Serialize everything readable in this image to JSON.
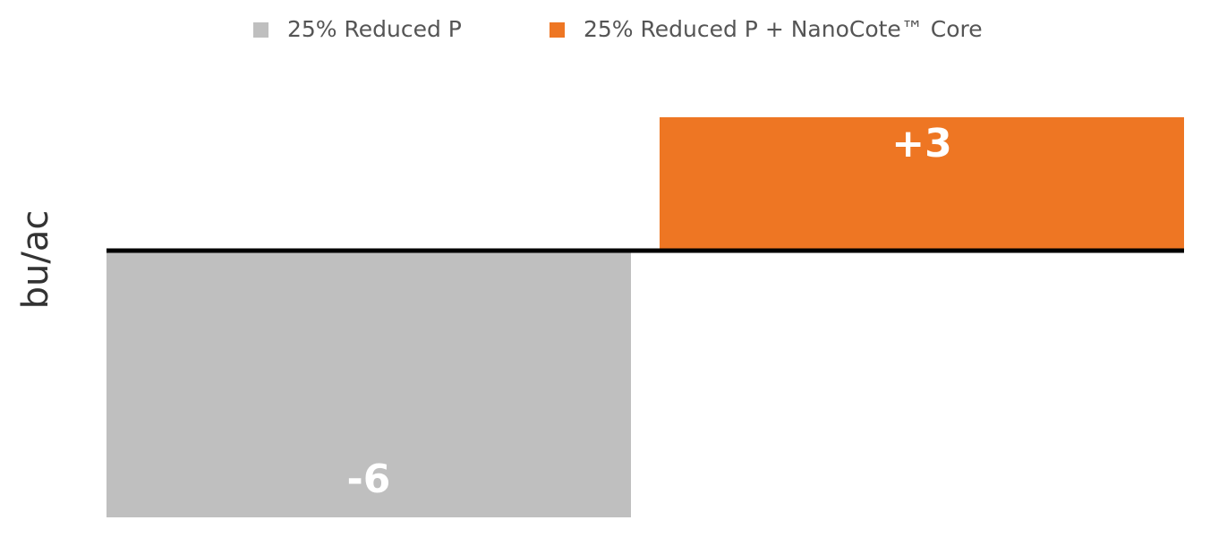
{
  "chart_data": {
    "type": "bar",
    "ylabel": "bu/ac",
    "categories": [
      null
    ],
    "series": [
      {
        "name": "25% Reduced P",
        "color": "#bfbfbf",
        "values": [
          -6
        ],
        "value_labels": [
          "-6"
        ]
      },
      {
        "name": "25% Reduced P + NanoCote™ Core",
        "color": "#ee7623",
        "values": [
          3
        ],
        "value_labels": [
          "+3"
        ]
      }
    ],
    "ylim": [
      -6,
      3
    ],
    "legend": "top"
  }
}
